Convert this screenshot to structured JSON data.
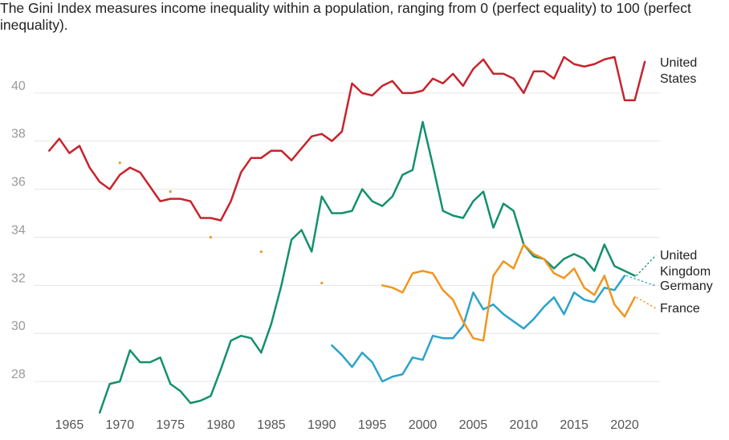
{
  "chart_data": {
    "type": "line",
    "subtitle": "The Gini Index measures income inequality within a population, ranging from 0 (perfect equality) to 100 (perfect inequality).",
    "ylim": [
      26.5,
      42
    ],
    "xlim": [
      1962.5,
      2023.5
    ],
    "yticks": [
      28,
      30,
      32,
      34,
      36,
      38,
      40
    ],
    "xticks": [
      1965,
      1970,
      1975,
      1980,
      1985,
      1990,
      1995,
      2000,
      2005,
      2010,
      2015,
      2020
    ],
    "colors": {
      "united_states": "#c8232c",
      "united_kingdom": "#13906e",
      "germany": "#2ba3cc",
      "france": "#f0961e"
    },
    "series": [
      {
        "key": "united_states",
        "name": "United States",
        "label_lines": [
          "United",
          "States"
        ],
        "points": [
          [
            1963,
            37.6
          ],
          [
            1964,
            38.1
          ],
          [
            1965,
            37.5
          ],
          [
            1966,
            37.8
          ],
          [
            1967,
            36.9
          ],
          [
            1968,
            36.3
          ],
          [
            1969,
            36.0
          ],
          [
            1970,
            36.6
          ],
          [
            1971,
            36.9
          ],
          [
            1972,
            36.7
          ],
          [
            1973,
            36.1
          ],
          [
            1974,
            35.5
          ],
          [
            1975,
            35.6
          ],
          [
            1976,
            35.6
          ],
          [
            1977,
            35.5
          ],
          [
            1978,
            34.8
          ],
          [
            1979,
            34.8
          ],
          [
            1980,
            34.7
          ],
          [
            1981,
            35.5
          ],
          [
            1982,
            36.7
          ],
          [
            1983,
            37.3
          ],
          [
            1984,
            37.3
          ],
          [
            1985,
            37.6
          ],
          [
            1986,
            37.6
          ],
          [
            1987,
            37.2
          ],
          [
            1988,
            37.7
          ],
          [
            1989,
            38.2
          ],
          [
            1990,
            38.3
          ],
          [
            1991,
            38.0
          ],
          [
            1992,
            38.4
          ],
          [
            1993,
            40.4
          ],
          [
            1994,
            40.0
          ],
          [
            1995,
            39.9
          ],
          [
            1996,
            40.3
          ],
          [
            1997,
            40.5
          ],
          [
            1998,
            40.0
          ],
          [
            1999,
            40.0
          ],
          [
            2000,
            40.1
          ],
          [
            2001,
            40.6
          ],
          [
            2002,
            40.4
          ],
          [
            2003,
            40.8
          ],
          [
            2004,
            40.3
          ],
          [
            2005,
            41.0
          ],
          [
            2006,
            41.4
          ],
          [
            2007,
            40.8
          ],
          [
            2008,
            40.8
          ],
          [
            2009,
            40.6
          ],
          [
            2010,
            40.0
          ],
          [
            2011,
            40.9
          ],
          [
            2012,
            40.9
          ],
          [
            2013,
            40.6
          ],
          [
            2014,
            41.5
          ],
          [
            2015,
            41.2
          ],
          [
            2016,
            41.1
          ],
          [
            2017,
            41.2
          ],
          [
            2018,
            41.4
          ],
          [
            2019,
            41.5
          ],
          [
            2020,
            39.7
          ],
          [
            2021,
            39.7
          ],
          [
            2022,
            41.3
          ]
        ],
        "dots": []
      },
      {
        "key": "united_kingdom",
        "name": "United Kingdom",
        "label_lines": [
          "United",
          "Kingdom"
        ],
        "points": [
          [
            1968,
            26.7
          ],
          [
            1969,
            27.9
          ],
          [
            1970,
            28.0
          ],
          [
            1971,
            29.3
          ],
          [
            1972,
            28.8
          ],
          [
            1973,
            28.8
          ],
          [
            1974,
            29.0
          ],
          [
            1975,
            27.9
          ],
          [
            1976,
            27.6
          ],
          [
            1977,
            27.1
          ],
          [
            1978,
            27.2
          ],
          [
            1979,
            27.4
          ],
          [
            1980,
            28.5
          ],
          [
            1981,
            29.7
          ],
          [
            1982,
            29.9
          ],
          [
            1983,
            29.8
          ],
          [
            1984,
            29.2
          ],
          [
            1985,
            30.4
          ],
          [
            1986,
            32.0
          ],
          [
            1987,
            33.9
          ],
          [
            1988,
            34.3
          ],
          [
            1989,
            33.4
          ],
          [
            1990,
            35.7
          ],
          [
            1991,
            35.0
          ],
          [
            1992,
            35.0
          ],
          [
            1993,
            35.1
          ],
          [
            1994,
            36.0
          ],
          [
            1995,
            35.5
          ],
          [
            1996,
            35.3
          ],
          [
            1997,
            35.7
          ],
          [
            1998,
            36.6
          ],
          [
            1999,
            36.8
          ],
          [
            2000,
            38.8
          ],
          [
            2001,
            37.0
          ],
          [
            2002,
            35.1
          ],
          [
            2003,
            34.9
          ],
          [
            2004,
            34.8
          ],
          [
            2005,
            35.5
          ],
          [
            2006,
            35.9
          ],
          [
            2007,
            34.4
          ],
          [
            2008,
            35.4
          ],
          [
            2009,
            35.1
          ],
          [
            2010,
            33.7
          ],
          [
            2011,
            33.2
          ],
          [
            2012,
            33.1
          ],
          [
            2013,
            32.7
          ],
          [
            2014,
            33.1
          ],
          [
            2015,
            33.3
          ],
          [
            2016,
            33.1
          ],
          [
            2017,
            32.6
          ],
          [
            2018,
            33.7
          ],
          [
            2019,
            32.8
          ],
          [
            2020,
            32.6
          ],
          [
            2021,
            32.4
          ]
        ],
        "dots": []
      },
      {
        "key": "germany",
        "name": "Germany",
        "label_lines": [
          "Germany"
        ],
        "points": [
          [
            1991,
            29.5
          ],
          [
            1992,
            29.1
          ],
          [
            1993,
            28.6
          ],
          [
            1994,
            29.2
          ],
          [
            1995,
            28.8
          ],
          [
            1996,
            28.0
          ],
          [
            1997,
            28.2
          ],
          [
            1998,
            28.3
          ],
          [
            1999,
            29.0
          ],
          [
            2000,
            28.9
          ],
          [
            2001,
            29.9
          ],
          [
            2002,
            29.8
          ],
          [
            2003,
            29.8
          ],
          [
            2004,
            30.3
          ],
          [
            2005,
            31.7
          ],
          [
            2006,
            31.0
          ],
          [
            2007,
            31.2
          ],
          [
            2008,
            30.8
          ],
          [
            2009,
            30.5
          ],
          [
            2010,
            30.2
          ],
          [
            2011,
            30.6
          ],
          [
            2012,
            31.1
          ],
          [
            2013,
            31.5
          ],
          [
            2014,
            30.8
          ],
          [
            2015,
            31.7
          ],
          [
            2016,
            31.4
          ],
          [
            2017,
            31.3
          ],
          [
            2018,
            31.9
          ],
          [
            2019,
            31.8
          ],
          [
            2020,
            32.4
          ]
        ],
        "dots": []
      },
      {
        "key": "france",
        "name": "France",
        "label_lines": [
          "France"
        ],
        "points": [
          [
            1996,
            32.0
          ],
          [
            1997,
            31.9
          ],
          [
            1998,
            31.7
          ],
          [
            1999,
            32.5
          ],
          [
            2000,
            32.6
          ],
          [
            2001,
            32.5
          ],
          [
            2002,
            31.8
          ],
          [
            2003,
            31.4
          ],
          [
            2004,
            30.5
          ],
          [
            2005,
            29.8
          ],
          [
            2006,
            29.7
          ],
          [
            2007,
            32.4
          ],
          [
            2008,
            33.0
          ],
          [
            2009,
            32.7
          ],
          [
            2010,
            33.7
          ],
          [
            2011,
            33.3
          ],
          [
            2012,
            33.1
          ],
          [
            2013,
            32.5
          ],
          [
            2014,
            32.3
          ],
          [
            2015,
            32.7
          ],
          [
            2016,
            31.9
          ],
          [
            2017,
            31.6
          ],
          [
            2018,
            32.4
          ],
          [
            2019,
            31.2
          ],
          [
            2020,
            30.7
          ],
          [
            2021,
            31.5
          ]
        ],
        "dots": [
          [
            1970,
            37.1
          ],
          [
            1975,
            35.9
          ],
          [
            1979,
            34.0
          ],
          [
            1984,
            33.4
          ],
          [
            1990,
            32.1
          ]
        ]
      }
    ]
  }
}
